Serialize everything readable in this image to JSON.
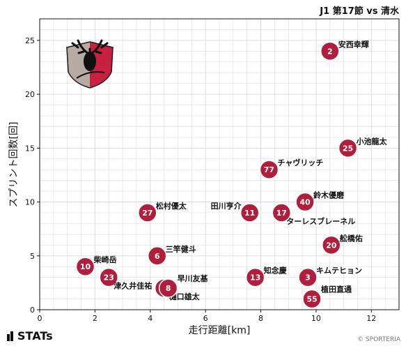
{
  "header": {
    "match_title": "J1 第17節 vs 清水"
  },
  "brand": {
    "stats": "STATs",
    "copyright": "© SPORTERIA"
  },
  "colors": {
    "marker": "#b01e3c",
    "marker_stroke": "#ffffff",
    "grid": "#dddddd",
    "logo_red": "#c8203f",
    "logo_grey": "#b8aba2"
  },
  "chart_data": {
    "type": "scatter",
    "title": "",
    "xlabel": "走行距離[km]",
    "ylabel": "スプリント回数[回]",
    "xlim": [
      0,
      13
    ],
    "ylim": [
      0,
      27
    ],
    "xticks": [
      0,
      2,
      4,
      6,
      8,
      10,
      12
    ],
    "yticks": [
      0,
      5,
      10,
      15,
      20,
      25
    ],
    "grid": true,
    "points": [
      {
        "number": "2",
        "name": "安西幸輝",
        "x": 10.5,
        "y": 24,
        "label_side": "right"
      },
      {
        "number": "25",
        "name": "小池龍太",
        "x": 11.15,
        "y": 15,
        "label_side": "right"
      },
      {
        "number": "77",
        "name": "チャヴリッチ",
        "x": 8.3,
        "y": 13,
        "label_side": "right"
      },
      {
        "number": "40",
        "name": "鈴木優磨",
        "x": 9.6,
        "y": 10,
        "label_side": "right"
      },
      {
        "number": "27",
        "name": "松村優太",
        "x": 3.9,
        "y": 9,
        "label_side": "right"
      },
      {
        "number": "11",
        "name": "田川亨介",
        "x": 7.6,
        "y": 9,
        "label_side": "left"
      },
      {
        "number": "17",
        "name": "ターレスブレーネル",
        "x": 8.75,
        "y": 9,
        "label_side": "below-right"
      },
      {
        "number": "20",
        "name": "舩橋佑",
        "x": 10.55,
        "y": 6,
        "label_side": "right"
      },
      {
        "number": "6",
        "name": "三竿健斗",
        "x": 4.25,
        "y": 5,
        "label_side": "right"
      },
      {
        "number": "10",
        "name": "柴崎岳",
        "x": 1.65,
        "y": 4,
        "label_side": "right"
      },
      {
        "number": "13",
        "name": "知念慶",
        "x": 7.8,
        "y": 3,
        "label_side": "right"
      },
      {
        "number": "3",
        "name": "キムテヒョン",
        "x": 9.7,
        "y": 3,
        "label_side": "right"
      },
      {
        "number": "23",
        "name": "津久井佳祐",
        "x": 2.5,
        "y": 3,
        "label_side": "below-right"
      },
      {
        "number": "14",
        "name": "樋口雄太",
        "x": 4.5,
        "y": 2,
        "label_side": "below-right"
      },
      {
        "number": "8",
        "name": "早川友基",
        "x": 4.65,
        "y": 2,
        "label_side": "above-right"
      },
      {
        "number": "55",
        "name": "植田直通",
        "x": 9.85,
        "y": 1,
        "label_side": "above-right"
      }
    ]
  }
}
